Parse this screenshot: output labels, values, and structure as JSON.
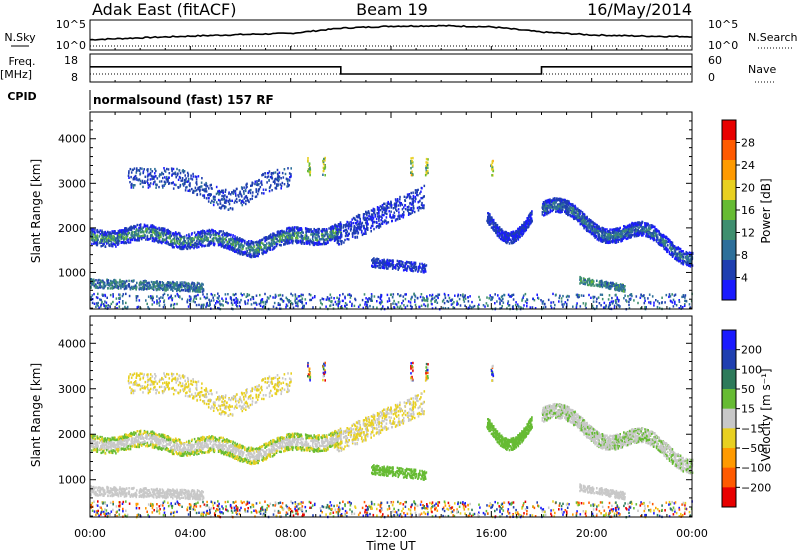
{
  "header": {
    "station": "Adak East (fitACF)",
    "beam": "Beam 19",
    "date": "16/May/2014"
  },
  "top_panels": {
    "nsky_label": "N.Sky",
    "nsky_ticks": [
      "10^5",
      "10^0"
    ],
    "nsearch_label": "N.Search",
    "nsearch_ticks": [
      "10^5",
      "10^0"
    ],
    "freq_label": "Freq.",
    "freq_unit": "[MHz]",
    "freq_ticks": [
      "18",
      "8"
    ],
    "nave_label": "Nave",
    "nave_ticks": [
      "60",
      "0"
    ],
    "cpid_label": "CPID",
    "cpid_text": "normalsound (fast) 157 RF"
  },
  "colors": {
    "power": [
      "#1a1aff",
      "#1f3fb0",
      "#2d6f9a",
      "#3f8f6f",
      "#66bb33",
      "#e8d020",
      "#ff9a00",
      "#ff5a00",
      "#e80000"
    ],
    "velocity": [
      "#1a1aff",
      "#1f3fb0",
      "#2d7a5a",
      "#66bb33",
      "#c8c8c8",
      "#e8d020",
      "#ff9a00",
      "#ff5a00",
      "#e80000"
    ]
  },
  "chart_data": [
    {
      "type": "line",
      "panel": "N.Sky / N.Search",
      "x": [
        "00:00",
        "02:00",
        "04:00",
        "06:00",
        "08:00",
        "10:00",
        "12:00",
        "14:00",
        "16:00",
        "18:00",
        "20:00",
        "22:00",
        "24:00"
      ],
      "series": [
        {
          "values": [
            30,
            70,
            150,
            300,
            500,
            5000,
            12000,
            15000,
            9000,
            900,
            250,
            150,
            120
          ]
        }
      ]
    },
    {
      "type": "line",
      "panel": "Freq. / Nave",
      "x": [
        "00:00",
        "10:00",
        "10:00",
        "18:00",
        "18:00",
        "24:00"
      ],
      "series": [
        {
          "name": "Freq.",
          "values": [
            13.5,
            13.5,
            10.5,
            10.5,
            13.5,
            13.5
          ]
        }
      ],
      "ylim": [
        8,
        18
      ]
    },
    {
      "type": "heatmap",
      "panel": "Power",
      "xlabel": "Time UT",
      "ylabel": "Slant Range [km]",
      "xticks": [
        "00:00",
        "04:00",
        "08:00",
        "12:00",
        "16:00",
        "20:00",
        "00:00"
      ],
      "yticks": [
        "1000",
        "2000",
        "3000",
        "4000"
      ],
      "ylim": [
        180,
        4600
      ],
      "colorbar_label": "Power [dB]",
      "colorbar_ticks": [
        "4",
        "8",
        "12",
        "16",
        "20",
        "24",
        "28"
      ],
      "clim": [
        0,
        32
      ]
    },
    {
      "type": "heatmap",
      "panel": "Velocity",
      "xlabel": "Time UT",
      "ylabel": "Slant Range [km]",
      "xticks": [
        "00:00",
        "04:00",
        "08:00",
        "12:00",
        "16:00",
        "20:00",
        "00:00"
      ],
      "yticks": [
        "1000",
        "2000",
        "3000",
        "4000"
      ],
      "ylim": [
        180,
        4600
      ],
      "colorbar_label": "Velocity [m s⁻¹]",
      "colorbar_ticks": [
        "200",
        "100",
        "50",
        "15",
        "−15",
        "−50",
        "−100",
        "−200"
      ]
    }
  ]
}
